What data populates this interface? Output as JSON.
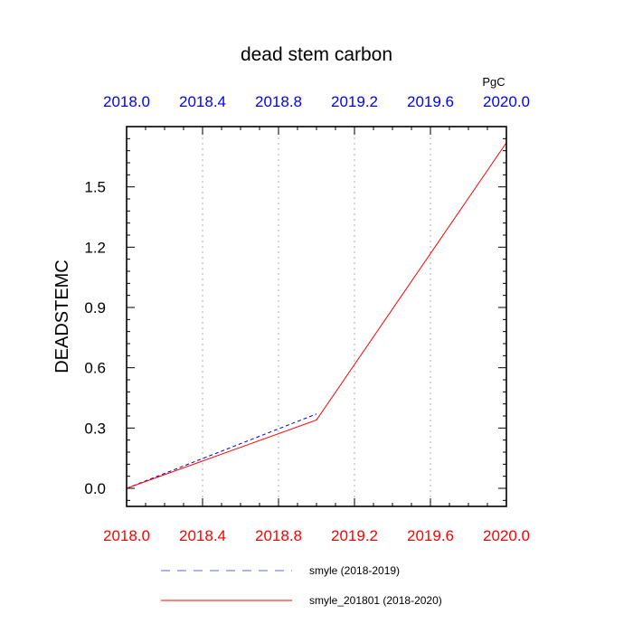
{
  "chart_data": {
    "type": "line",
    "title": "dead stem carbon",
    "units": "PgC",
    "ylabel": "DEADSTEMC",
    "xlabel": "",
    "xlim": [
      2018.0,
      2020.0
    ],
    "ylim": [
      -0.09,
      1.8
    ],
    "bottom_ticks": [
      "2018.0",
      "2018.4",
      "2018.8",
      "2019.2",
      "2019.6",
      "2020.0"
    ],
    "top_ticks": [
      "2018.0",
      "2018.4",
      "2018.8",
      "2019.2",
      "2019.6",
      "2020.0"
    ],
    "y_ticks": [
      "0.0",
      "0.3",
      "0.6",
      "0.9",
      "1.2",
      "1.5"
    ],
    "grid": "vertical dotted",
    "series": [
      {
        "name": "smyle (2018-2019)",
        "color": "#0000cc",
        "dash": "dashed",
        "x": [
          2018.0,
          2019.0
        ],
        "y": [
          0.0,
          0.37
        ]
      },
      {
        "name": "smyle_201801 (2018-2020)",
        "color": "#ff0000",
        "dash": "solid",
        "x": [
          2018.0,
          2019.0,
          2020.0
        ],
        "y": [
          0.0,
          0.34,
          1.72
        ]
      }
    ],
    "colors": {
      "top_axis": "#0000ff",
      "bottom_axis": "#ff0000"
    }
  }
}
